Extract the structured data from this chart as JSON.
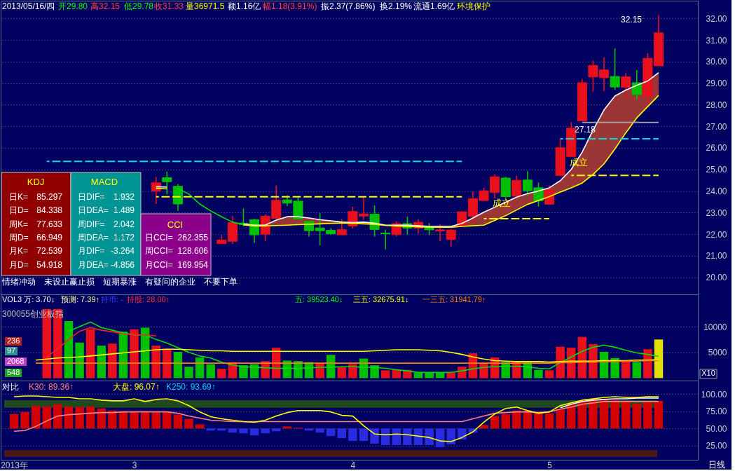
{
  "chart_data": [
    {
      "type": "candlestick",
      "categories": [
        null,
        null,
        null,
        null,
        null,
        null,
        null,
        null,
        null,
        null,
        null,
        null,
        null,
        null,
        null,
        null,
        null,
        null,
        null,
        null,
        null,
        null,
        null,
        null,
        null,
        null,
        null,
        null,
        null,
        null,
        null,
        null,
        null,
        null,
        null,
        null,
        null,
        null,
        null,
        null,
        null,
        null,
        null,
        null,
        null,
        null,
        null,
        null,
        null,
        null,
        null,
        null,
        null,
        null,
        null,
        null,
        null,
        null,
        null,
        null
      ],
      "ohlc": [
        null,
        null,
        null,
        null,
        null,
        null,
        null,
        null,
        null,
        null,
        null,
        null,
        null,
        [
          24.0,
          24.65,
          23.4,
          24.38
        ],
        [
          24.62,
          24.9,
          23.84,
          24.43
        ],
        [
          24.22,
          24.32,
          23.08,
          23.4
        ],
        null,
        null,
        null,
        [
          21.56,
          21.97,
          21.56,
          21.73
        ],
        [
          21.67,
          22.84,
          21.54,
          22.54
        ],
        [
          22.51,
          23.19,
          22.37,
          22.45
        ],
        [
          22.67,
          22.7,
          21.6,
          21.97
        ],
        [
          22.0,
          22.92,
          21.69,
          22.83
        ],
        [
          22.73,
          24.25,
          22.73,
          23.57
        ],
        [
          23.59,
          23.8,
          23.3,
          23.44
        ],
        [
          23.53,
          23.73,
          22.7,
          22.7
        ],
        [
          22.59,
          22.59,
          21.89,
          22.16
        ],
        [
          22.29,
          22.97,
          21.48,
          22.16
        ],
        [
          22.18,
          22.27,
          21.97,
          22.02
        ],
        [
          21.97,
          22.7,
          21.97,
          22.21
        ],
        [
          22.38,
          23.27,
          22.27,
          23.05
        ],
        [
          22.84,
          23.71,
          22.67,
          22.94
        ],
        [
          22.93,
          23.33,
          21.89,
          22.22
        ],
        [
          22.05,
          22.21,
          21.3,
          22.02
        ],
        [
          21.98,
          22.59,
          21.9,
          22.49
        ],
        [
          22.49,
          22.82,
          21.99,
          22.28
        ],
        [
          22.28,
          22.7,
          22.03,
          22.55
        ],
        [
          22.28,
          22.51,
          21.95,
          22.2
        ],
        [
          22.15,
          22.47,
          21.68,
          22.2
        ],
        [
          21.76,
          22.24,
          21.42,
          22.19
        ],
        [
          22.4,
          23.04,
          22.36,
          23.04
        ],
        [
          22.82,
          23.98,
          22.53,
          23.64
        ],
        [
          23.56,
          24.15,
          23.54,
          24.01
        ],
        [
          23.93,
          24.78,
          23.66,
          24.66
        ],
        [
          24.6,
          24.66,
          23.68,
          23.74
        ],
        [
          23.76,
          24.7,
          23.76,
          24.49
        ],
        [
          24.51,
          24.92,
          23.78,
          24.01
        ],
        [
          24.15,
          24.39,
          23.28,
          23.54
        ],
        [
          23.39,
          24.27,
          23.39,
          24.04
        ],
        [
          24.72,
          26.39,
          24.72,
          26.01
        ],
        [
          25.6,
          27.19,
          25.6,
          26.91
        ],
        [
          27.25,
          29.2,
          27.25,
          29.02
        ],
        [
          29.29,
          30.04,
          28.61,
          29.82
        ],
        [
          29.25,
          30.2,
          28.63,
          29.61
        ],
        [
          29.31,
          30.61,
          28.7,
          28.82
        ],
        [
          28.81,
          29.49,
          28.25,
          29.29
        ],
        [
          29.02,
          29.61,
          28.25,
          28.47
        ],
        [
          28.39,
          30.4,
          28.02,
          30.15
        ],
        [
          29.8,
          32.15,
          29.78,
          31.33
        ]
      ],
      "colors": [
        null,
        null,
        null,
        null,
        null,
        null,
        null,
        null,
        null,
        null,
        null,
        null,
        null,
        "#e8101c",
        "#00c000",
        "#00c000",
        null,
        null,
        null,
        "#e8101c",
        "#e8101c",
        "#00c000",
        "#00c000",
        "#e8101c",
        "#e8101c",
        "#00c000",
        "#00c000",
        "#00c000",
        "#00c000",
        "#00c000",
        "#e8101c",
        "#e8101c",
        "#e8101c",
        "#00c000",
        "#00c000",
        "#e8101c",
        "#00c000",
        "#e8101c",
        "#00c000",
        "#e8101c",
        "#e8101c",
        "#e8101c",
        "#e8101c",
        "#e8101c",
        "#e8101c",
        "#00c000",
        "#e8101c",
        "#00c000",
        "#00c000",
        "#e8101c",
        "#e8101c",
        "#e8101c",
        "#e8101c",
        "#e8101c",
        "#e8101c",
        "#00c000",
        "#e8101c",
        "#00c000",
        "#e8101c",
        "#e8101c"
      ],
      "series": [
        {
          "type": "line",
          "color": "#ffffff",
          "values": [
            null,
            null,
            null,
            null,
            null,
            null,
            null,
            null,
            null,
            null,
            null,
            null,
            null,
            24.2,
            24.18,
            null,
            null,
            null,
            null,
            null,
            null,
            22.47,
            22.42,
            22.42,
            22.65,
            22.81,
            22.81,
            22.75,
            22.67,
            22.62,
            22.56,
            22.54,
            22.56,
            22.51,
            22.42,
            22.42,
            22.42,
            22.39,
            22.36,
            22.36,
            22.36,
            22.5,
            22.75,
            23.02,
            23.25,
            23.48,
            23.72,
            23.88,
            24.0,
            24.15,
            24.48,
            25.0,
            25.8,
            26.82,
            27.76,
            28.4,
            28.68,
            28.9,
            29.1,
            29.49
          ],
          "lower": [
            null,
            null,
            null,
            null,
            null,
            null,
            null,
            null,
            null,
            null,
            null,
            null,
            null,
            null,
            null,
            null,
            null,
            null,
            null,
            null,
            null,
            22.43,
            22.38,
            22.38,
            22.4,
            22.42,
            22.44,
            22.46,
            22.48,
            22.5,
            22.52,
            22.5,
            22.48,
            22.46,
            22.4,
            22.38,
            22.36,
            22.34,
            22.32,
            22.32,
            22.32,
            22.36,
            22.39,
            22.42,
            22.64,
            22.86,
            23.12,
            23.38,
            23.56,
            23.74,
            23.95,
            24.15,
            24.37,
            24.77,
            25.26,
            25.95,
            26.7,
            27.39,
            27.91,
            28.43
          ],
          "upper": [
            null,
            null,
            null,
            null,
            null,
            null,
            null,
            null,
            null,
            null,
            null,
            null,
            null,
            null,
            null,
            null,
            null,
            null,
            null,
            null,
            null,
            22.47,
            22.42,
            22.42,
            22.65,
            22.81,
            22.81,
            22.75,
            22.67,
            22.62,
            22.56,
            22.54,
            22.56,
            22.51,
            22.42,
            22.42,
            22.42,
            22.39,
            22.36,
            22.36,
            22.36,
            22.5,
            22.75,
            23.02,
            23.25,
            23.48,
            23.72,
            23.88,
            24.0,
            24.15,
            24.48,
            25.0,
            25.8,
            26.82,
            27.76,
            28.4,
            28.68,
            28.9,
            29.1,
            29.49
          ]
        },
        {
          "type": "line",
          "color": "#ffff00",
          "values": [
            null,
            null,
            null,
            null,
            null,
            null,
            null,
            null,
            null,
            null,
            null,
            null,
            null,
            24.12,
            24.1,
            null,
            null,
            null,
            null,
            null,
            null,
            22.43,
            22.38,
            22.38,
            22.4,
            22.42,
            22.44,
            22.46,
            22.48,
            22.5,
            22.52,
            22.5,
            22.48,
            22.46,
            22.4,
            22.38,
            22.36,
            22.34,
            22.32,
            22.32,
            22.32,
            22.36,
            22.39,
            22.42,
            22.64,
            22.86,
            23.12,
            23.38,
            23.56,
            23.74,
            23.95,
            24.15,
            24.37,
            24.77,
            25.26,
            25.95,
            26.7,
            27.39,
            27.91,
            28.43
          ]
        },
        {
          "type": "line",
          "color": "#00e000",
          "values": [
            null,
            null,
            null,
            null,
            null,
            null,
            null,
            null,
            null,
            null,
            null,
            null,
            null,
            null,
            null,
            24.11,
            23.86,
            23.4,
            23.08,
            22.81,
            22.56,
            22.45,
            null,
            null,
            null,
            null,
            null,
            null,
            null,
            null,
            null,
            null,
            null,
            null,
            null,
            null,
            null,
            null,
            null,
            null,
            null,
            null,
            null,
            null,
            null,
            null,
            null,
            null,
            null,
            null,
            null,
            null,
            null,
            null,
            null,
            null,
            null,
            null,
            null,
            null
          ]
        },
        {
          "type": "line",
          "color": "#00e0e0",
          "line_style": "dashed",
          "values": [
            null,
            null,
            null,
            25.37,
            25.37,
            25.37,
            25.37,
            25.37,
            25.37,
            25.37,
            25.37,
            25.37,
            25.37,
            25.37,
            25.37,
            25.37,
            25.37,
            25.37,
            25.37,
            25.37,
            25.37,
            25.37,
            25.37,
            25.37,
            25.37,
            25.37,
            25.37,
            25.37,
            25.37,
            25.37,
            25.37,
            25.37,
            25.37,
            25.37,
            25.37,
            25.37,
            25.37,
            25.37,
            25.37,
            25.37,
            25.37,
            25.37,
            null,
            null,
            null,
            null,
            null,
            null,
            null,
            null,
            null,
            null,
            null,
            null,
            null,
            null,
            null,
            null,
            null,
            null
          ]
        },
        {
          "type": "line",
          "color": "#ffff00",
          "line_style": "dashed",
          "values": [
            null,
            null,
            null,
            null,
            null,
            null,
            null,
            null,
            null,
            null,
            null,
            null,
            null,
            23.73,
            23.73,
            23.73,
            23.73,
            23.73,
            23.73,
            23.73,
            23.73,
            23.73,
            23.73,
            23.73,
            23.73,
            23.73,
            23.73,
            23.73,
            23.73,
            23.73,
            23.73,
            23.73,
            23.73,
            23.73,
            23.73,
            23.73,
            23.73,
            23.73,
            23.73,
            23.73,
            23.73,
            23.73,
            null,
            null,
            null,
            null,
            null,
            null,
            null,
            null,
            null,
            null,
            null,
            null,
            null,
            null,
            null,
            null,
            null,
            null
          ]
        },
        {
          "type": "line",
          "color": "#ffff00",
          "line_style": "dashed",
          "values": [
            null,
            null,
            null,
            null,
            null,
            null,
            null,
            null,
            null,
            null,
            null,
            null,
            null,
            null,
            null,
            null,
            null,
            null,
            null,
            null,
            null,
            null,
            null,
            null,
            null,
            null,
            null,
            null,
            null,
            null,
            null,
            null,
            null,
            null,
            null,
            null,
            null,
            null,
            null,
            null,
            null,
            null,
            null,
            22.72,
            22.72,
            22.72,
            22.72,
            22.72,
            22.72,
            22.72,
            null,
            null,
            null,
            null,
            null,
            null,
            null,
            null,
            null,
            null
          ]
        },
        {
          "type": "line",
          "color": "#00e0e0",
          "line_style": "dashed",
          "values": [
            null,
            null,
            null,
            null,
            null,
            null,
            null,
            null,
            null,
            null,
            null,
            null,
            null,
            null,
            null,
            null,
            null,
            null,
            null,
            null,
            null,
            null,
            null,
            null,
            null,
            null,
            null,
            null,
            null,
            null,
            null,
            null,
            null,
            null,
            null,
            null,
            null,
            null,
            null,
            null,
            null,
            null,
            null,
            null,
            null,
            null,
            null,
            null,
            null,
            null,
            26.42,
            26.42,
            26.42,
            26.42,
            26.42,
            26.42,
            26.42,
            26.42,
            26.42,
            26.42
          ]
        },
        {
          "type": "line",
          "color": "#ffff00",
          "line_style": "dashed",
          "values": [
            null,
            null,
            null,
            null,
            null,
            null,
            null,
            null,
            null,
            null,
            null,
            null,
            null,
            null,
            null,
            null,
            null,
            null,
            null,
            null,
            null,
            null,
            null,
            null,
            null,
            null,
            null,
            null,
            null,
            null,
            null,
            null,
            null,
            null,
            null,
            null,
            null,
            null,
            null,
            null,
            null,
            null,
            null,
            null,
            null,
            null,
            null,
            null,
            null,
            null,
            null,
            24.72,
            24.72,
            24.72,
            24.72,
            24.72,
            24.72,
            24.72,
            24.72,
            24.72
          ]
        },
        {
          "type": "line",
          "color": "#a8a8a8",
          "values": [
            null,
            null,
            null,
            null,
            null,
            null,
            null,
            null,
            null,
            null,
            null,
            null,
            null,
            null,
            null,
            null,
            null,
            null,
            null,
            null,
            null,
            null,
            null,
            null,
            null,
            null,
            null,
            null,
            null,
            null,
            null,
            null,
            null,
            null,
            null,
            null,
            null,
            null,
            null,
            null,
            null,
            null,
            null,
            null,
            null,
            null,
            null,
            null,
            null,
            null,
            null,
            null,
            27.18,
            27.18,
            27.18,
            27.18,
            27.18,
            27.18,
            27.18,
            27.18
          ]
        }
      ],
      "ylim": [
        19.21,
        32.82
      ],
      "yticks": [
        {
          "value": 20,
          "label": "20.00"
        },
        {
          "value": 21,
          "label": "21.00"
        },
        {
          "value": 22,
          "label": "22.00"
        },
        {
          "value": 23,
          "label": "23.00"
        },
        {
          "value": 24,
          "label": "24.00"
        },
        {
          "value": 25,
          "label": "25.00"
        },
        {
          "value": 26,
          "label": "26.00"
        },
        {
          "value": 27,
          "label": "27.00"
        },
        {
          "value": 28,
          "label": "28.00"
        },
        {
          "value": 29,
          "label": "29.00"
        },
        {
          "value": 30,
          "label": "30.00"
        },
        {
          "value": 31,
          "label": "31.00"
        },
        {
          "value": 32,
          "label": "32.00"
        }
      ],
      "grid": "y",
      "tick_labels": "y",
      "annotations": [
        "2013/05/16/四",
        "开29.80",
        "高32.15",
        "低29.78",
        "收31.33",
        "量36971.5",
        "额1.16亿",
        "幅1.18(3.91%)",
        "振2.37(7.86%)",
        "换2.19%",
        "流通1.69亿",
        "环境保护",
        "KDJ",
        "日K=",
        "85.297",
        "日D=",
        "84.338",
        "周K=",
        "77.633",
        "周D=",
        "66.949",
        "月K=",
        "72.539",
        "月D=",
        "54.918",
        "MACD",
        "日DIF=",
        "1.932",
        "日DEA=",
        "1.489",
        "周DIF=",
        "2.042",
        "周DEA=",
        "1.172",
        "月DIF=",
        "-3.264",
        "月DEA=",
        "-4.856",
        "CCI",
        "日CCI=",
        "262.355",
        "周CCI=",
        "128.606",
        "月CCI=",
        "169.954",
        "情绪冲动",
        "未设止赢止损",
        "短期暴涨",
        "有疑问的企业",
        "不要下单",
        "32.15",
        {
          "text": "27.18",
          "y": 27.18
        },
        "成立",
        "成立"
      ]
    },
    {
      "type": "bar",
      "categories": [
        null,
        null,
        null,
        null,
        null,
        null,
        null,
        null,
        null,
        null,
        null,
        null,
        null,
        null,
        null,
        null,
        null,
        null,
        null,
        null,
        null,
        null,
        null,
        null,
        null,
        null,
        null,
        null,
        null,
        null,
        null,
        null,
        null,
        null,
        null,
        null,
        null,
        null,
        null,
        null,
        null,
        null,
        null,
        null,
        null,
        null,
        null,
        null,
        null,
        null,
        null,
        null,
        null,
        null,
        null,
        null,
        null,
        null,
        null,
        null
      ],
      "series": [
        {
          "type": "bar",
          "values": [
            null,
            null,
            null,
            13400,
            13400,
            11100,
            6900,
            9500,
            6300,
            6700,
            9000,
            9500,
            9800,
            6300,
            5700,
            5100,
            2200,
            4000,
            2700,
            1800,
            3100,
            2500,
            2700,
            3300,
            5900,
            3400,
            3300,
            3100,
            2900,
            4500,
            2200,
            2700,
            3800,
            2500,
            1500,
            1600,
            1600,
            1100,
            1100,
            1100,
            1100,
            2200,
            4800,
            3000,
            4000,
            3100,
            3300,
            3100,
            1600,
            1500,
            6100,
            5900,
            8000,
            6600,
            5100,
            3900,
            3300,
            3100,
            5600,
            7500
          ],
          "colors": [
            null,
            null,
            null,
            "#e8101c",
            "#e8101c",
            "#00c000",
            "#00c000",
            "#e8101c",
            "#00c000",
            "#e8101c",
            "#00c000",
            "#e8101c",
            "#00c000",
            "#e8101c",
            "#e8101c",
            "#00c000",
            "#00c000",
            "#00c000",
            "#00c000",
            "#e8101c",
            "#e8101c",
            "#00c000",
            "#00c000",
            "#e8101c",
            "#e8101c",
            "#00c000",
            "#00c000",
            "#00c000",
            "#e8101c",
            "#00c000",
            "#e8101c",
            "#e8101c",
            "#00c000",
            "#00c000",
            "#e8101c",
            "#e8101c",
            "#e8101c",
            "#00c000",
            "#00c000",
            "#00c000",
            "#e8101c",
            "#e8101c",
            "#e8101c",
            "#e8101c",
            "#e8101c",
            "#00c000",
            "#e8101c",
            "#00c000",
            "#00c000",
            "#e8101c",
            "#e8101c",
            "#e8101c",
            "#e8101c",
            "#e8101c",
            "#00c000",
            "#00c000",
            "#e8101c",
            "#00c000",
            "#e8101c",
            "#e0e000"
          ]
        },
        {
          "type": "line",
          "color": "#00e000",
          "values": [
            null,
            null,
            null,
            null,
            null,
            9100,
            10000,
            10900,
            9800,
            9300,
            8800,
            8400,
            8400,
            7500,
            6800,
            5900,
            5000,
            4300,
            3900,
            3100,
            2500,
            2200,
            2100,
            2000,
            1900,
            1900,
            1900,
            2000,
            2100,
            2100,
            2200,
            2200,
            2100,
            2100,
            1900,
            1600,
            1400,
            1100,
            1100,
            1100,
            1100,
            1400,
            1800,
            2100,
            2200,
            2300,
            2300,
            2200,
            1900,
            1800,
            3000,
            4100,
            5200,
            6000,
            6400,
            6000,
            5400,
            4900,
            4600,
            4200
          ]
        },
        {
          "type": "line",
          "color": "#ff2020",
          "values": [
            null,
            null,
            null,
            4100,
            5700,
            7500,
            9100,
            9800,
            9300,
            9000,
            8600,
            8400,
            8400,
            8200,
            null,
            null,
            null,
            null,
            null,
            null,
            null,
            null,
            null,
            null,
            null,
            null,
            null,
            null,
            null,
            null,
            null,
            null,
            null,
            null,
            null,
            null,
            null,
            null,
            null,
            null,
            null,
            null,
            null,
            null,
            null,
            null,
            null,
            null,
            null,
            null,
            null,
            null,
            null,
            null,
            null,
            null,
            null,
            null,
            null,
            null
          ]
        },
        {
          "type": "line",
          "color": "#ffff00",
          "values": [
            null,
            null,
            3500,
            3700,
            3900,
            4000,
            4100,
            4300,
            4500,
            4700,
            4900,
            5100,
            5300,
            5500,
            5600,
            5600,
            5500,
            5400,
            5300,
            5300,
            5200,
            5200,
            5200,
            5200,
            5200,
            5200,
            5200,
            5200,
            5200,
            5200,
            5200,
            5200,
            5200,
            5300,
            5400,
            5500,
            5500,
            5500,
            5400,
            5300,
            5000,
            4600,
            4100,
            3700,
            3400,
            3300,
            3200,
            3200,
            3200,
            3100,
            3200,
            3300,
            3300,
            3300,
            3400,
            3400,
            3400,
            3500,
            3500,
            3600
          ]
        },
        {
          "type": "line",
          "color": "#ff8000",
          "values": [
            null,
            null,
            2900,
            2900,
            2900,
            2900,
            2900,
            2900,
            2900,
            2900,
            2900,
            2900,
            2900,
            2900,
            2900,
            2900,
            2900,
            2900,
            2900,
            2900,
            2900,
            2900,
            2900,
            2900,
            2900,
            2900,
            2900,
            2900,
            2900,
            2900,
            2900,
            2900,
            2900,
            2900,
            2900,
            2900,
            2900,
            2900,
            2900,
            2900,
            2900,
            2900,
            2900,
            2900,
            2900,
            2900,
            2900,
            2900,
            2900,
            2900,
            3000,
            3000,
            3100,
            3100,
            3200,
            3200,
            3300,
            3300,
            3400,
            3400
          ]
        }
      ],
      "ylim": [
        -490,
        16270
      ],
      "yticks": [
        5000,
        10000
      ],
      "grid": "y",
      "tick_labels": "y",
      "annotations": [
        "VOL3 万: 3.70↓",
        "预测: 7.39↑",
        "持币: -",
        "持股: 28.00↑",
        "五: 39523.40↓",
        "三五: 32675.91↓",
        "一三五: 31941.79↑",
        "300055创业板指",
        "236",
        "97",
        "2068",
        "548",
        "X10"
      ]
    },
    {
      "type": "bar",
      "categories": [
        "2013年",
        null,
        null,
        null,
        null,
        null,
        null,
        null,
        null,
        null,
        null,
        "3",
        null,
        null,
        null,
        null,
        null,
        null,
        null,
        null,
        null,
        null,
        null,
        null,
        null,
        null,
        null,
        null,
        null,
        null,
        null,
        "4",
        null,
        null,
        null,
        null,
        null,
        null,
        null,
        null,
        null,
        null,
        null,
        null,
        null,
        null,
        null,
        null,
        null,
        "5",
        null,
        null,
        null,
        null,
        null,
        null,
        null,
        null,
        null,
        null
      ],
      "series": [
        {
          "type": "bar",
          "base": [
            50,
            50,
            50,
            50,
            50,
            50,
            50,
            50,
            50,
            50,
            50,
            50,
            50,
            50,
            50,
            50,
            50,
            50,
            50,
            50,
            50,
            50,
            50,
            50,
            50,
            50,
            50,
            50,
            50,
            50,
            50,
            50,
            50,
            50,
            50,
            50,
            50,
            50,
            50,
            50,
            50,
            50,
            50,
            50,
            50,
            50,
            50,
            50,
            50,
            50,
            50,
            50,
            50,
            50,
            50,
            50,
            50,
            50,
            50,
            50
          ],
          "values": [
            21,
            24,
            33,
            32,
            35,
            32,
            31,
            32,
            29,
            26,
            25,
            25,
            25,
            24,
            24,
            20,
            14,
            6,
            -3,
            -3,
            -6,
            -7,
            -10,
            -7,
            -4,
            3,
            1,
            -3,
            -6,
            -11,
            -14,
            -18,
            -18,
            -22,
            -24,
            -24,
            -24,
            -24,
            -24,
            -27,
            -23,
            -16,
            -6,
            5,
            18,
            21,
            26,
            26,
            24,
            22,
            28,
            35,
            40,
            43,
            43,
            41,
            38,
            36,
            38,
            40
          ],
          "colors": [
            "#d40000",
            "#d40000",
            "#d40000",
            "#d40000",
            "#d40000",
            "#d40000",
            "#d40000",
            "#d40000",
            "#d40000",
            "#d40000",
            "#d40000",
            "#d40000",
            "#d40000",
            "#d40000",
            "#d40000",
            "#d40000",
            "#d40000",
            "#d40000",
            "#2a2ae0",
            "#2a2ae0",
            "#2a2ae0",
            "#2a2ae0",
            "#2a2ae0",
            "#2a2ae0",
            "#2a2ae0",
            "#d40000",
            "#d40000",
            "#2a2ae0",
            "#2a2ae0",
            "#2a2ae0",
            "#2a2ae0",
            "#2a2ae0",
            "#2a2ae0",
            "#2a2ae0",
            "#2a2ae0",
            "#2a2ae0",
            "#2a2ae0",
            "#2a2ae0",
            "#2a2ae0",
            "#2a2ae0",
            "#2a2ae0",
            "#2a2ae0",
            "#2a2ae0",
            "#d40000",
            "#d40000",
            "#d40000",
            "#d40000",
            "#d40000",
            "#d40000",
            "#d40000",
            "#d40000",
            "#d40000",
            "#d40000",
            "#d40000",
            "#d40000",
            "#d40000",
            "#d40000",
            "#d40000",
            "#d40000",
            "#d40000"
          ]
        },
        {
          "type": "line",
          "color": "#ff8080",
          "values": [
            46,
            47,
            53,
            61,
            68,
            70,
            71,
            72,
            73,
            73,
            74,
            74,
            74,
            74,
            74,
            72,
            68,
            65,
            62,
            61,
            60,
            60,
            60,
            60,
            60,
            60,
            60,
            60,
            60,
            60,
            60,
            60,
            60,
            60,
            60,
            60,
            60,
            60,
            60,
            60,
            60,
            60,
            64,
            68,
            72,
            73,
            74,
            74,
            73,
            74,
            78,
            81,
            85,
            87,
            89,
            89,
            89,
            89,
            89,
            89
          ]
        },
        {
          "type": "line",
          "color": "#ffff00",
          "values": [
            96,
            97,
            97,
            96,
            95,
            95,
            93,
            93,
            91,
            90,
            90,
            93,
            89,
            92,
            93,
            90,
            83,
            74,
            67,
            64,
            62,
            60,
            59,
            62,
            68,
            73,
            76,
            76,
            76,
            74,
            69,
            68,
            54,
            42,
            41,
            42,
            41,
            39,
            37,
            32,
            31,
            37,
            45,
            59,
            71,
            79,
            81,
            76,
            72,
            74,
            83,
            87,
            91,
            93,
            95,
            96,
            95,
            95,
            96,
            96
          ]
        },
        {
          "type": "line",
          "color": "#ffffff",
          "values": [
            null,
            null,
            null,
            null,
            null,
            null,
            null,
            null,
            null,
            null,
            null,
            null,
            null,
            null,
            null,
            null,
            null,
            null,
            null,
            null,
            null,
            null,
            null,
            null,
            null,
            null,
            null,
            null,
            null,
            null,
            null,
            null,
            null,
            null,
            null,
            null,
            null,
            null,
            null,
            null,
            null,
            null,
            null,
            null,
            null,
            null,
            null,
            null,
            null,
            null,
            80,
            85,
            89,
            91,
            92,
            93,
            93,
            94,
            94,
            94
          ]
        }
      ],
      "bands": [
        {
          "axis": "y",
          "from": 80,
          "to": 91,
          "color": "#1e4a1e"
        },
        {
          "axis": "y",
          "from": 9,
          "to": 19,
          "color": "#4a1818"
        }
      ],
      "ylim": [
        4.7,
        119.3
      ],
      "yticks": [
        {
          "value": 25,
          "label": "25.00"
        },
        {
          "value": 50,
          "label": "50.00"
        },
        {
          "value": 75,
          "label": "75.00"
        },
        {
          "value": 100,
          "label": "100.00"
        }
      ],
      "grid": "y",
      "annotations": [
        "对比",
        "K30: 89.36↑",
        "大盘: 96.07↑",
        "K250: 93.69↑",
        "日线"
      ]
    }
  ]
}
